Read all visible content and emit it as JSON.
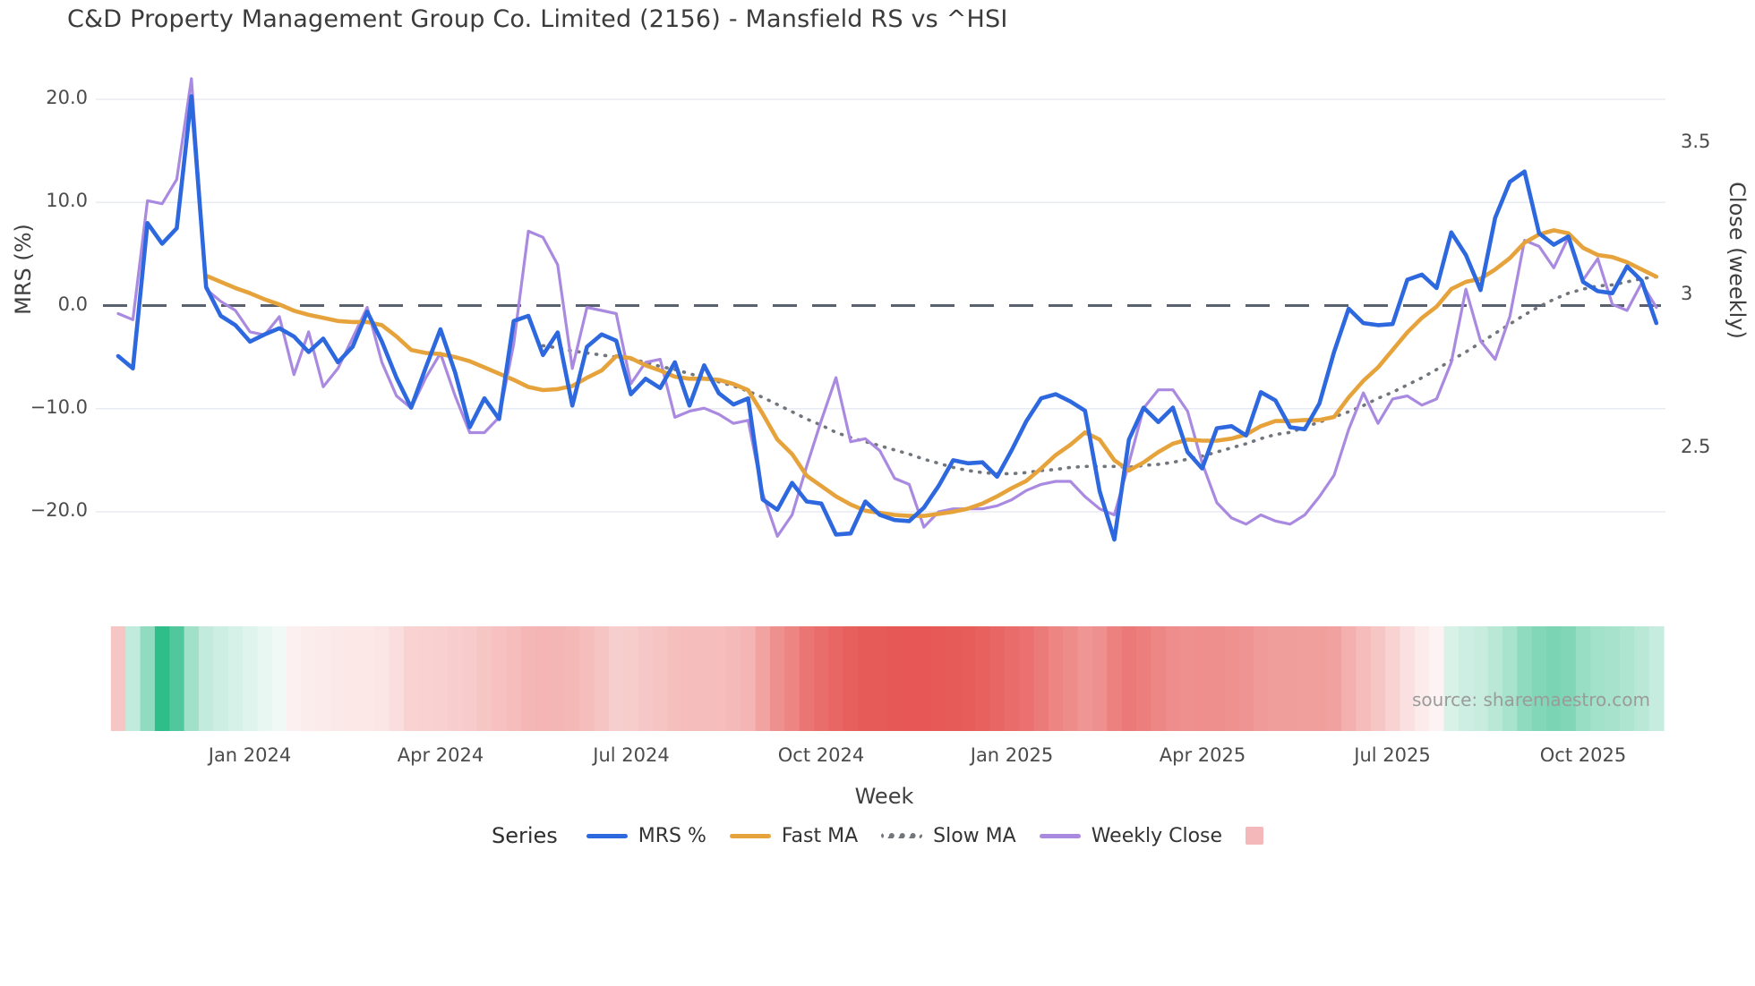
{
  "title": "C&D Property Management Group Co. Limited (2156) - Mansfield RS vs ^HSI",
  "source_note": "source: sharemaestro.com",
  "chart_data": {
    "type": "line",
    "title": "C&D Property Management Group Co. Limited (2156) - Mansfield RS vs ^HSI",
    "xlabel": "Week",
    "ylabel_left": "MRS (%)",
    "ylabel_right": "Close (weekly)",
    "legend_title": "Series",
    "grid": true,
    "zero_line_axis": "left",
    "x_weeks": 106,
    "x_start": "late Oct 2023",
    "x_tick_labels": [
      "Jan 2024",
      "Apr 2024",
      "Jul 2024",
      "Oct 2024",
      "Jan 2025",
      "Apr 2025",
      "Jul 2025",
      "Oct 2025"
    ],
    "x_tick_week_index": [
      9,
      22,
      35,
      48,
      61,
      74,
      87,
      100
    ],
    "y_ticks_left": {
      "values": [
        20,
        10,
        0,
        -10,
        -20
      ],
      "labels": [
        "20.0",
        "10.0",
        "0.0",
        "−10.0",
        "−20.0"
      ]
    },
    "y_ticks_right": {
      "values": [
        3.5,
        3,
        2.5
      ],
      "labels": [
        "3.5",
        "3",
        "2.5"
      ]
    },
    "ylim_left": [
      -24.5,
      22.0
    ],
    "ylim_right": [
      2.15,
      3.78
    ],
    "series": [
      {
        "name": "MRS %",
        "axis": "left",
        "color": "#2d68df",
        "style": "solid",
        "values": [
          -4.9,
          -6.1,
          8.0,
          6.0,
          7.5,
          20.3,
          1.8,
          -1.0,
          -1.9,
          -3.5,
          -2.8,
          -2.2,
          -3.0,
          -4.5,
          -3.2,
          -5.5,
          -4.0,
          -0.6,
          -3.5,
          -7.0,
          -9.9,
          -6.0,
          -2.3,
          -6.5,
          -11.8,
          -9.0,
          -11.0,
          -1.5,
          -1.0,
          -4.8,
          -2.6,
          -9.7,
          -4.0,
          -2.8,
          -3.4,
          -8.6,
          -7.1,
          -8.0,
          -5.5,
          -9.7,
          -5.8,
          -8.5,
          -9.6,
          -9.0,
          -18.8,
          -19.8,
          -17.2,
          -19.0,
          -19.2,
          -22.2,
          -22.1,
          -19.0,
          -20.3,
          -20.8,
          -20.9,
          -19.6,
          -17.5,
          -15.0,
          -15.3,
          -15.2,
          -16.6,
          -14.0,
          -11.2,
          -9.0,
          -8.6,
          -9.3,
          -10.2,
          -18.0,
          -22.7,
          -13.0,
          -9.9,
          -11.3,
          -9.9,
          -14.2,
          -15.8,
          -11.9,
          -11.7,
          -12.6,
          -8.4,
          -9.2,
          -11.8,
          -12.0,
          -9.5,
          -4.5,
          -0.3,
          -1.7,
          -1.9,
          -1.8,
          2.5,
          3.0,
          1.7,
          7.1,
          4.9,
          1.5,
          8.5,
          12.0,
          13.0,
          7.0,
          5.9,
          6.7,
          2.3,
          1.4,
          1.2,
          3.8,
          2.4,
          -1.7
        ]
      },
      {
        "name": "Fast MA",
        "axis": "left",
        "color": "#e7a33b",
        "style": "solid",
        "values": [
          null,
          null,
          null,
          null,
          null,
          null,
          2.9,
          2.3,
          1.7,
          1.2,
          0.6,
          0.1,
          -0.5,
          -0.9,
          -1.2,
          -1.5,
          -1.6,
          -1.6,
          -1.9,
          -3.0,
          -4.3,
          -4.6,
          -4.7,
          -5.0,
          -5.4,
          -6.0,
          -6.6,
          -7.2,
          -7.9,
          -8.2,
          -8.1,
          -7.8,
          -7.0,
          -6.3,
          -4.9,
          -5.1,
          -5.8,
          -6.3,
          -6.9,
          -7.1,
          -7.1,
          -7.2,
          -7.6,
          -8.2,
          -10.5,
          -13.0,
          -14.4,
          -16.5,
          -17.5,
          -18.5,
          -19.3,
          -19.9,
          -20.1,
          -20.3,
          -20.4,
          -20.4,
          -20.2,
          -20.0,
          -19.7,
          -19.2,
          -18.5,
          -17.7,
          -17.0,
          -15.8,
          -14.5,
          -13.5,
          -12.3,
          -13.0,
          -15.0,
          -16.0,
          -15.2,
          -14.2,
          -13.4,
          -13.0,
          -13.1,
          -13.1,
          -12.9,
          -12.5,
          -11.7,
          -11.2,
          -11.2,
          -11.1,
          -11.1,
          -10.8,
          -8.9,
          -7.3,
          -6.0,
          -4.3,
          -2.6,
          -1.2,
          -0.1,
          1.6,
          2.3,
          2.6,
          3.5,
          4.6,
          6.1,
          6.9,
          7.3,
          7.0,
          5.6,
          4.9,
          4.7,
          4.2,
          3.5,
          2.8
        ]
      },
      {
        "name": "Slow MA",
        "axis": "left",
        "color": "#71757c",
        "style": "dotted",
        "values": [
          null,
          null,
          null,
          null,
          null,
          null,
          null,
          null,
          null,
          null,
          null,
          null,
          null,
          null,
          null,
          null,
          null,
          null,
          null,
          null,
          null,
          null,
          null,
          null,
          null,
          null,
          null,
          null,
          null,
          -3.9,
          -4.1,
          -4.4,
          -4.6,
          -4.8,
          -5.0,
          -5.2,
          -5.5,
          -5.9,
          -6.2,
          -6.6,
          -7.0,
          -7.4,
          -7.8,
          -8.3,
          -8.9,
          -9.6,
          -10.3,
          -11.0,
          -11.6,
          -12.3,
          -12.8,
          -13.2,
          -13.6,
          -14.0,
          -14.4,
          -14.9,
          -15.3,
          -15.7,
          -16.0,
          -16.2,
          -16.3,
          -16.3,
          -16.2,
          -16.0,
          -15.9,
          -15.7,
          -15.6,
          -15.6,
          -15.6,
          -15.7,
          -15.5,
          -15.4,
          -15.2,
          -14.9,
          -14.6,
          -14.2,
          -13.8,
          -13.4,
          -12.9,
          -12.5,
          -12.3,
          -11.8,
          -11.3,
          -10.8,
          -10.3,
          -9.7,
          -9.0,
          -8.4,
          -7.7,
          -7.0,
          -6.2,
          -5.3,
          -4.5,
          -3.6,
          -2.7,
          -1.8,
          -0.9,
          -0.1,
          0.6,
          1.2,
          1.6,
          1.9,
          2.0,
          2.3,
          2.6,
          2.8
        ]
      },
      {
        "name": "Weekly Close",
        "axis": "right",
        "color": "#a98ae0",
        "style": "solid",
        "values": [
          2.94,
          2.92,
          3.31,
          3.3,
          3.38,
          3.71,
          3.02,
          2.98,
          2.95,
          2.88,
          2.87,
          2.93,
          2.74,
          2.88,
          2.7,
          2.76,
          2.86,
          2.96,
          2.78,
          2.67,
          2.63,
          2.73,
          2.81,
          2.67,
          2.55,
          2.55,
          2.6,
          2.84,
          3.21,
          3.19,
          3.1,
          2.76,
          2.96,
          2.95,
          2.94,
          2.71,
          2.78,
          2.79,
          2.6,
          2.62,
          2.63,
          2.61,
          2.58,
          2.59,
          2.35,
          2.21,
          2.28,
          2.44,
          2.59,
          2.73,
          2.52,
          2.53,
          2.49,
          2.4,
          2.38,
          2.24,
          2.29,
          2.3,
          2.3,
          2.3,
          2.31,
          2.33,
          2.36,
          2.38,
          2.39,
          2.39,
          2.34,
          2.3,
          2.28,
          2.45,
          2.63,
          2.69,
          2.69,
          2.62,
          2.45,
          2.32,
          2.27,
          2.25,
          2.28,
          2.26,
          2.25,
          2.28,
          2.34,
          2.41,
          2.56,
          2.68,
          2.58,
          2.66,
          2.67,
          2.64,
          2.66,
          2.78,
          3.02,
          2.85,
          2.79,
          2.93,
          3.18,
          3.16,
          3.09,
          3.19,
          3.05,
          3.12,
          2.97,
          2.95,
          3.04,
          2.96
        ]
      }
    ],
    "heatmap": {
      "legend_swatch_color": "#f4b8bb",
      "negative_color": "#e44b48",
      "positive_color": "#2fbd8a",
      "values": [
        -6,
        3,
        6,
        17,
        10,
        5,
        2.9,
        2.3,
        1.7,
        1.2,
        0.6,
        0.1,
        -0.5,
        -0.9,
        -1.2,
        -1.5,
        -1.6,
        -1.6,
        -1.9,
        -3.0,
        -4.3,
        -4.6,
        -4.7,
        -5.0,
        -5.4,
        -6.0,
        -6.6,
        -7.2,
        -7.9,
        -8.2,
        -8.1,
        -7.8,
        -7.0,
        -6.3,
        -4.9,
        -5.1,
        -5.8,
        -6.3,
        -6.9,
        -7.1,
        -7.1,
        -7.2,
        -7.6,
        -8.2,
        -10.5,
        -13.0,
        -14.4,
        -16.5,
        -17.5,
        -18.5,
        -19.3,
        -19.9,
        -20.1,
        -20.3,
        -20.4,
        -20.4,
        -20.2,
        -20.0,
        -19.7,
        -19.2,
        -18.5,
        -17.7,
        -17.0,
        -15.8,
        -14.5,
        -13.5,
        -12.3,
        -13.0,
        -15.0,
        -16.0,
        -15.2,
        -14.2,
        -13.4,
        -13.0,
        -13.1,
        -13.1,
        -12.9,
        -12.5,
        -11.7,
        -11.2,
        -11.2,
        -11.1,
        -11.1,
        -10.8,
        -8.9,
        -7.3,
        -6.0,
        -4.3,
        -2.6,
        -1.2,
        -0.1,
        1.6,
        2.3,
        2.6,
        3.5,
        4.6,
        6.1,
        6.9,
        7.3,
        7.0,
        5.6,
        4.9,
        4.7,
        4.2,
        3.5,
        2.8
      ]
    }
  }
}
